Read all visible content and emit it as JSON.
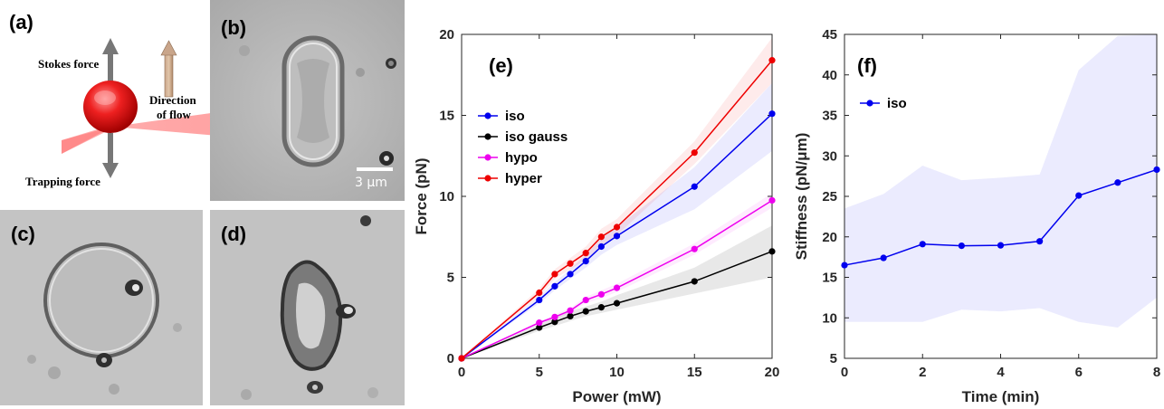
{
  "panels": {
    "a": {
      "label": "(a)",
      "stokes_force": "Stokes force",
      "direction_of_flow_line1": "Direction",
      "direction_of_flow_line2": "of flow",
      "trapping_force": "Trapping force"
    },
    "b": {
      "label": "(b)",
      "scale_bar": "3 μm"
    },
    "c": {
      "label": "(c)"
    },
    "d": {
      "label": "(d)"
    }
  },
  "chart_data": [
    {
      "panel_label": "(e)",
      "type": "line",
      "xlabel": "Power (mW)",
      "ylabel": "Force (pN)",
      "xlim": [
        0,
        20
      ],
      "ylim": [
        0,
        20
      ],
      "xticks": [
        0,
        5,
        10,
        15,
        20
      ],
      "yticks": [
        0,
        5,
        10,
        15,
        20
      ],
      "legend_position": "upper-left",
      "grid": false,
      "series": [
        {
          "name": "iso",
          "color": "#0000ee",
          "x": [
            0,
            5,
            6,
            7,
            8,
            9,
            10,
            15,
            20
          ],
          "y": [
            0,
            3.6,
            4.45,
            5.2,
            6.0,
            6.9,
            7.55,
            10.6,
            15.1
          ],
          "band_low": [
            0,
            3.4,
            4.2,
            4.9,
            5.6,
            6.4,
            7.0,
            9.2,
            12.8
          ],
          "band_high": [
            0,
            3.8,
            4.7,
            5.5,
            6.4,
            7.4,
            8.1,
            11.8,
            17.0
          ]
        },
        {
          "name": "iso gauss",
          "color": "#000000",
          "x": [
            0,
            5,
            6,
            7,
            8,
            9,
            10,
            15,
            20
          ],
          "y": [
            0,
            1.9,
            2.25,
            2.6,
            2.9,
            3.15,
            3.4,
            4.75,
            6.6
          ],
          "band_low": [
            0,
            1.7,
            2.0,
            2.3,
            2.6,
            2.8,
            3.0,
            4.0,
            5.0
          ],
          "band_high": [
            0,
            2.1,
            2.5,
            2.9,
            3.2,
            3.5,
            3.9,
            5.6,
            8.2
          ]
        },
        {
          "name": "hypo",
          "color": "#ee00ee",
          "x": [
            0,
            5,
            6,
            7,
            8,
            9,
            10,
            15,
            20
          ],
          "y": [
            0,
            2.2,
            2.55,
            2.95,
            3.6,
            3.95,
            4.35,
            6.75,
            9.75
          ],
          "band_low": [
            0,
            2.1,
            2.4,
            2.8,
            3.4,
            3.7,
            4.1,
            6.4,
            9.3
          ],
          "band_high": [
            0,
            2.3,
            2.7,
            3.1,
            3.8,
            4.2,
            4.6,
            7.1,
            10.2
          ]
        },
        {
          "name": "hyper",
          "color": "#ee0000",
          "x": [
            0,
            5,
            6,
            7,
            8,
            9,
            10,
            15,
            20
          ],
          "y": [
            0,
            4.05,
            5.2,
            5.85,
            6.5,
            7.5,
            8.1,
            12.7,
            18.4
          ],
          "band_low": [
            0,
            3.8,
            4.9,
            5.5,
            6.1,
            7.0,
            7.6,
            12.0,
            17.0
          ],
          "band_high": [
            0,
            4.3,
            5.5,
            6.2,
            6.9,
            8.0,
            8.6,
            13.4,
            19.8
          ]
        }
      ]
    },
    {
      "panel_label": "(f)",
      "type": "line",
      "xlabel": "Time (min)",
      "ylabel": "Stiffness (pN/μm)",
      "xlim": [
        0,
        8
      ],
      "ylim": [
        5,
        45
      ],
      "xticks": [
        0,
        2,
        4,
        6,
        8
      ],
      "yticks": [
        5,
        10,
        15,
        20,
        25,
        30,
        35,
        40,
        45
      ],
      "legend_position": "upper-left",
      "grid": false,
      "series": [
        {
          "name": "iso",
          "color": "#0000ee",
          "x": [
            0,
            1,
            2,
            3,
            4,
            5,
            6,
            7,
            8
          ],
          "y": [
            16.5,
            17.4,
            19.1,
            18.9,
            18.95,
            19.45,
            25.1,
            26.7,
            28.3
          ],
          "band_low": [
            9.5,
            9.5,
            9.5,
            11.0,
            10.8,
            11.2,
            9.5,
            8.8,
            12.5
          ],
          "band_high": [
            23.5,
            25.3,
            28.8,
            27.0,
            27.3,
            27.7,
            40.6,
            44.8,
            45.0
          ]
        }
      ]
    }
  ]
}
